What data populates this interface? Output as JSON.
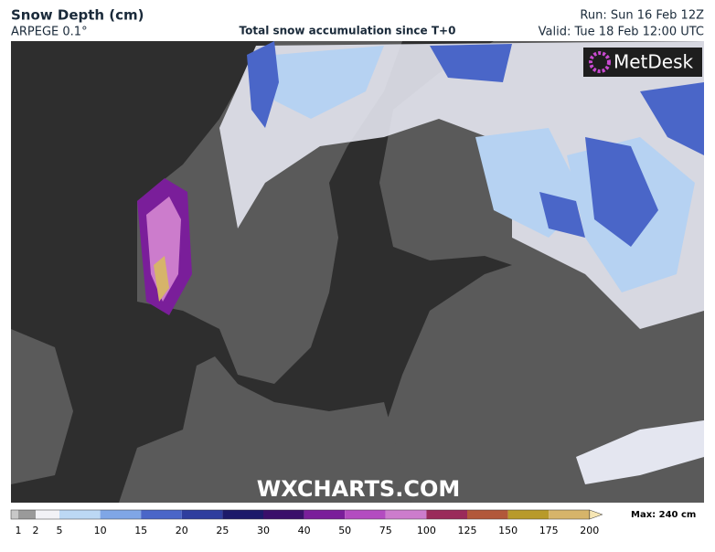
{
  "header": {
    "title": "Snow Depth (cm)",
    "model": "ARPEGE 0.1°",
    "subtitle": "Total snow accumulation since T+0",
    "run": "Run: Sun 16 Feb 12Z",
    "valid": "Valid: Tue 18 Feb 12:00 UTC"
  },
  "logo": "MetDesk",
  "watermark": "WXCHARTS.COM",
  "legend": {
    "ticks": [
      1,
      2,
      5,
      10,
      15,
      20,
      25,
      30,
      40,
      50,
      75,
      100,
      125,
      150,
      175,
      200
    ],
    "colors": [
      "#c8c8c8",
      "#9a9a9a",
      "#f2f2f6",
      "#bcd8f4",
      "#7fa6e6",
      "#4a66c8",
      "#2e3e9e",
      "#1c1a6a",
      "#3a0f6a",
      "#7a1e9a",
      "#b34cc0",
      "#cc7ccc",
      "#9a2a5a",
      "#b2583a",
      "#b89a2a",
      "#d6b46a",
      "#f6e6b4"
    ],
    "max_label": "Max: 240 cm"
  }
}
